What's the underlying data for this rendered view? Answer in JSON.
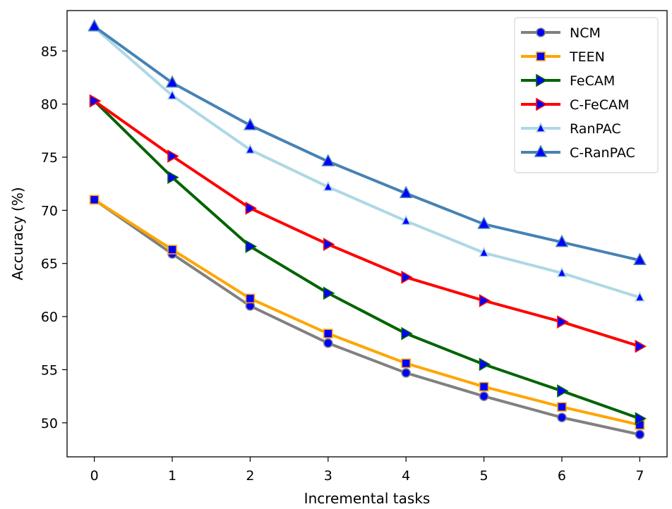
{
  "chart_data": {
    "type": "line",
    "title": "",
    "xlabel": "Incremental tasks",
    "ylabel": "Accuracy (%)",
    "x": [
      0,
      1,
      2,
      3,
      4,
      5,
      6,
      7
    ],
    "xlim": [
      -0.35,
      7.35
    ],
    "ylim": [
      46.8,
      88.8
    ],
    "yticks": [
      50,
      55,
      60,
      65,
      70,
      75,
      80,
      85
    ],
    "legend_position": "top-right",
    "marker_fill": "#0000ff",
    "series": [
      {
        "name": "NCM",
        "color": "#808080",
        "marker": "circle",
        "values": [
          71.0,
          65.9,
          61.0,
          57.5,
          54.7,
          52.5,
          50.5,
          48.9
        ]
      },
      {
        "name": "TEEN",
        "color": "#ffa500",
        "marker": "square",
        "values": [
          71.0,
          66.3,
          61.7,
          58.4,
          55.6,
          53.4,
          51.5,
          49.8
        ]
      },
      {
        "name": "FeCAM",
        "color": "#006400",
        "marker": "triangle-right",
        "values": [
          80.3,
          73.1,
          66.6,
          62.2,
          58.4,
          55.5,
          53.0,
          50.4
        ]
      },
      {
        "name": "C-FeCAM",
        "color": "#ff0000",
        "marker": "triangle-right",
        "values": [
          80.3,
          75.1,
          70.2,
          66.8,
          63.7,
          61.5,
          59.5,
          57.2
        ]
      },
      {
        "name": "RanPAC",
        "color": "#add8e6",
        "marker": "triangle-up-small",
        "values": [
          87.2,
          80.8,
          75.7,
          72.2,
          69.0,
          66.0,
          64.1,
          61.8
        ]
      },
      {
        "name": "C-RanPAC",
        "color": "#4682b4",
        "marker": "triangle-up",
        "values": [
          87.3,
          82.0,
          78.0,
          74.6,
          71.6,
          68.7,
          67.0,
          65.3
        ]
      }
    ]
  }
}
